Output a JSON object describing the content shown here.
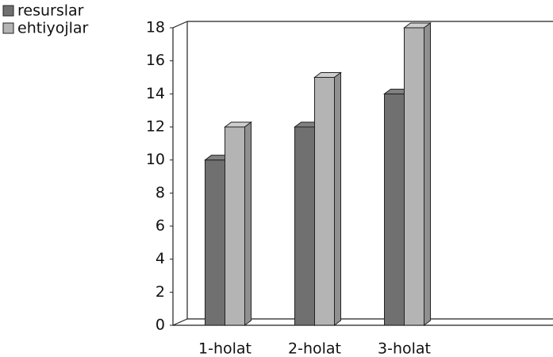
{
  "chart_data": {
    "type": "bar",
    "categories": [
      "1-holat",
      "2-holat",
      "3-holat"
    ],
    "series": [
      {
        "name": "resurslar",
        "color": "#707070",
        "values": [
          10,
          12,
          14
        ]
      },
      {
        "name": "ehtiyojlar",
        "color": "#b4b4b4",
        "values": [
          12,
          15,
          18
        ]
      }
    ],
    "ylim": [
      0,
      18
    ],
    "yticks": [
      0,
      2,
      4,
      6,
      8,
      10,
      12,
      14,
      16,
      18
    ],
    "legend": "top-left"
  }
}
